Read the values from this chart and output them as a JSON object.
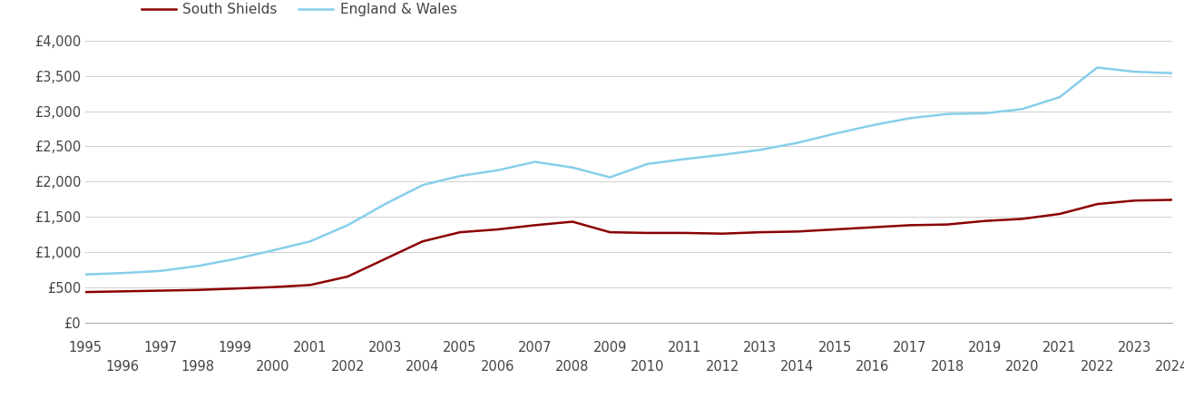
{
  "years": [
    1995,
    1996,
    1997,
    1998,
    1999,
    2000,
    2001,
    2002,
    2003,
    2004,
    2005,
    2006,
    2007,
    2008,
    2009,
    2010,
    2011,
    2012,
    2013,
    2014,
    2015,
    2016,
    2017,
    2018,
    2019,
    2020,
    2021,
    2022,
    2023,
    2024
  ],
  "south_shields": [
    430,
    440,
    450,
    460,
    480,
    500,
    530,
    650,
    900,
    1150,
    1280,
    1320,
    1380,
    1430,
    1280,
    1270,
    1270,
    1260,
    1280,
    1290,
    1320,
    1350,
    1380,
    1390,
    1440,
    1470,
    1540,
    1680,
    1730,
    1740
  ],
  "england_wales": [
    680,
    700,
    730,
    800,
    900,
    1020,
    1150,
    1380,
    1680,
    1950,
    2080,
    2160,
    2280,
    2200,
    2060,
    2250,
    2320,
    2380,
    2450,
    2550,
    2680,
    2800,
    2900,
    2960,
    2970,
    3030,
    3200,
    3620,
    3560,
    3540
  ],
  "south_shields_color": "#8B0000",
  "england_wales_color": "#87CEEB",
  "south_shields_label": "South Shields",
  "england_wales_label": "England & Wales",
  "ylim": [
    0,
    4000
  ],
  "yticks": [
    0,
    500,
    1000,
    1500,
    2000,
    2500,
    3000,
    3500,
    4000
  ],
  "ytick_labels": [
    "£0",
    "£500",
    "£1,000",
    "£1,500",
    "£2,000",
    "£2,500",
    "£3,000",
    "£3,500",
    "£4,000"
  ],
  "background_color": "#ffffff",
  "grid_color": "#d0d0d0",
  "line_width": 1.8,
  "legend_fontsize": 11,
  "tick_fontsize": 10.5,
  "text_color": "#444444"
}
